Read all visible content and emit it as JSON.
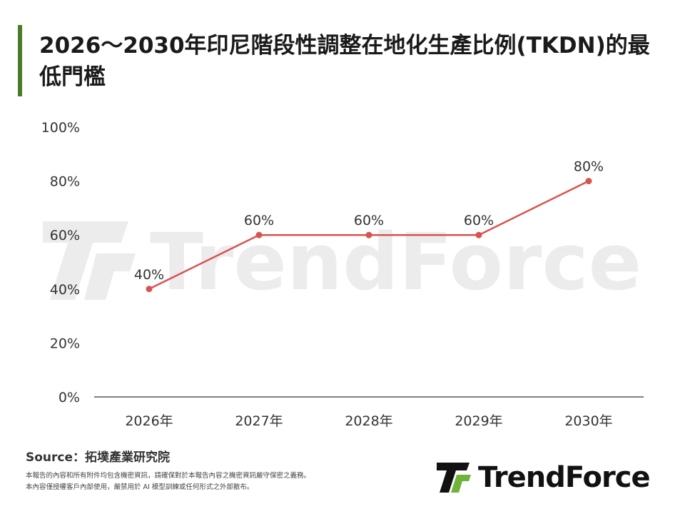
{
  "title": "2026～2030年印尼階段性調整在地化生產比例(TKDN)的最低門檻",
  "colors": {
    "accent": "#4a7c2a",
    "line": "#d9534f",
    "axis": "#333333"
  },
  "chart_data": {
    "type": "line",
    "title": "2026～2030年印尼階段性調整在地化生產比例(TKDN)的最低門檻",
    "categories": [
      "2026年",
      "2027年",
      "2028年",
      "2029年",
      "2030年"
    ],
    "values": [
      40,
      60,
      60,
      60,
      80
    ],
    "data_labels": [
      "40%",
      "60%",
      "60%",
      "60%",
      "80%"
    ],
    "y_ticks": [
      "0%",
      "20%",
      "40%",
      "60%",
      "80%",
      "100%"
    ],
    "ylim": [
      0,
      100
    ],
    "xlabel": "",
    "ylabel": "",
    "grid": false,
    "legend": "none"
  },
  "source": "Source：拓墣產業研究院",
  "notes": [
    "本報告的內容和所有附件均包含機密資訊，請確保對於本報告內容之機密資訊嚴守保密之義務。",
    "本內容僅授權客戶內部使用，嚴禁用於 AI 模型訓練或任何形式之外部散布。"
  ],
  "brand": {
    "name": "TrendForce",
    "icon": "trendforce-logo-icon",
    "watermark": "TrendForce"
  }
}
